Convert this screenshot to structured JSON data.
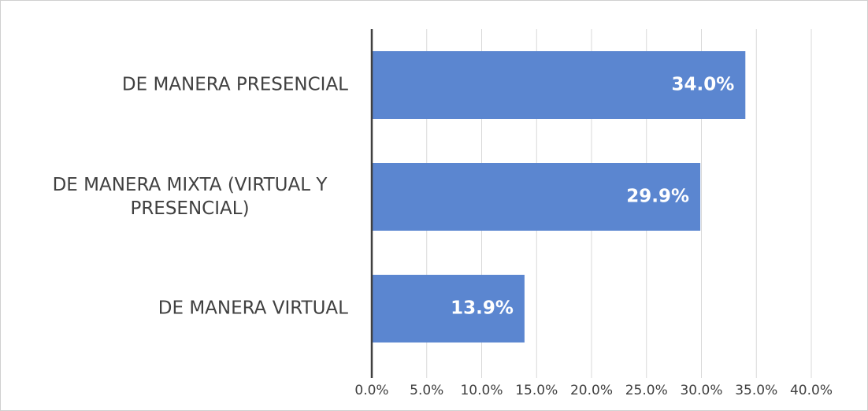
{
  "chart_data": {
    "type": "barh",
    "categories": [
      "DE MANERA PRESENCIAL",
      "DE MANERA MIXTA (VIRTUAL Y\nPRESENCIAL)",
      "DE MANERA VIRTUAL"
    ],
    "values": [
      34.0,
      29.9,
      13.9
    ],
    "value_labels": [
      "34.0%",
      "29.9%",
      "13.9%"
    ],
    "color": "#5b86d0",
    "xlim": [
      0,
      40
    ],
    "xticks": [
      {
        "value": 0,
        "label": "0.0%"
      },
      {
        "value": 5,
        "label": "5.0%"
      },
      {
        "value": 10,
        "label": "10.0%"
      },
      {
        "value": 15,
        "label": "15.0%"
      },
      {
        "value": 20,
        "label": "20.0%"
      },
      {
        "value": 25,
        "label": "25.0%"
      },
      {
        "value": 30,
        "label": "30.0%"
      },
      {
        "value": 35,
        "label": "35.0%"
      },
      {
        "value": 40,
        "label": "40.0%"
      }
    ],
    "grid": true
  }
}
